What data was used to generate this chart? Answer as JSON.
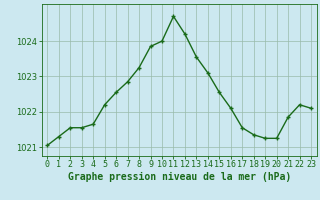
{
  "x": [
    0,
    1,
    2,
    3,
    4,
    5,
    6,
    7,
    8,
    9,
    10,
    11,
    12,
    13,
    14,
    15,
    16,
    17,
    18,
    19,
    20,
    21,
    22,
    23
  ],
  "y": [
    1021.05,
    1021.3,
    1021.55,
    1021.55,
    1021.65,
    1022.2,
    1022.55,
    1022.85,
    1023.25,
    1023.85,
    1024.0,
    1024.7,
    1024.2,
    1023.55,
    1023.1,
    1022.55,
    1022.1,
    1021.55,
    1021.35,
    1021.25,
    1021.25,
    1021.85,
    1022.2,
    1022.1
  ],
  "line_color": "#1a6b1a",
  "marker": "+",
  "marker_size": 3,
  "line_width": 1.0,
  "bg_color": "#cce8f0",
  "grid_color": "#99bbaa",
  "xlabel": "Graphe pression niveau de la mer (hPa)",
  "xlabel_fontsize": 7,
  "yticks": [
    1021,
    1022,
    1023,
    1024
  ],
  "ylim": [
    1020.75,
    1025.05
  ],
  "xlim": [
    -0.5,
    23.5
  ],
  "tick_fontsize": 6,
  "tick_color": "#1a6b1a",
  "border_color": "#1a6b1a",
  "ylabel_color": "#1a6b1a"
}
